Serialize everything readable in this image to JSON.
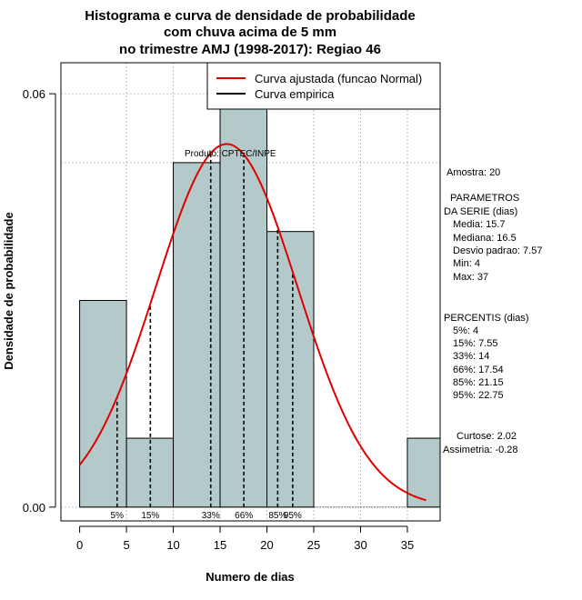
{
  "colors": {
    "bar_fill": "#b4caca",
    "curve": "#e00000",
    "grid": "#b0b0b0"
  },
  "chart_data": {
    "type": "bar",
    "title": [
      "Histograma e curva de densidade de probabilidade",
      "com chuva acima de 5 mm",
      "no trimestre AMJ (1998-2017): Regiao 46"
    ],
    "xlabel": "Numero de dias",
    "ylabel": "Densidade de probabilidade",
    "xlim": [
      -2,
      38.5
    ],
    "ylim": [
      -0.002,
      0.0645
    ],
    "x_ticks": [
      0,
      5,
      10,
      15,
      20,
      25,
      30,
      35
    ],
    "y_ticks": [
      0.0,
      0.06
    ],
    "y_tick_labels": [
      "0.00",
      "0.06"
    ],
    "x_gridlines": [
      5,
      10,
      15,
      20,
      25,
      30,
      35
    ],
    "y_gridlines": [
      0.0,
      0.05,
      0.06
    ],
    "bins": [
      {
        "x0": 0,
        "x1": 5,
        "density": 0.03
      },
      {
        "x0": 5,
        "x1": 10,
        "density": 0.01
      },
      {
        "x0": 10,
        "x1": 15,
        "density": 0.05
      },
      {
        "x0": 15,
        "x1": 20,
        "density": 0.06
      },
      {
        "x0": 20,
        "x1": 25,
        "density": 0.04
      },
      {
        "x0": 25,
        "x1": 30,
        "density": 0
      },
      {
        "x0": 30,
        "x1": 35,
        "density": 0
      },
      {
        "x0": 35,
        "x1": 40,
        "density": 0.01
      }
    ],
    "normal_curve": {
      "mean": 15.7,
      "sd": 7.57,
      "x_from": 0,
      "x_to": 37
    },
    "legend": {
      "position": "top-right",
      "entries": [
        "Curva ajustada (funcao Normal)",
        "Curva empirica"
      ]
    },
    "annotation": "Produto: CPTEC/INPE",
    "percentile_lines": [
      {
        "label": "5%",
        "x": 4
      },
      {
        "label": "15%",
        "x": 7.55
      },
      {
        "label": "33%",
        "x": 14
      },
      {
        "label": "66%",
        "x": 17.54
      },
      {
        "label": "85%",
        "x": 21.15
      },
      {
        "label": "95%",
        "x": 22.75
      }
    ],
    "stats": {
      "amostra": "Amostra: 20",
      "parametros_title": [
        "PARAMETROS",
        "DA SERIE (dias)"
      ],
      "parametros": [
        "Media: 15.7",
        "Mediana: 16.5",
        "Desvio padrao: 7.57",
        "Min: 4",
        "Max: 37"
      ],
      "percentis_title": "PERCENTIS (dias)",
      "percentis": [
        "5%: 4",
        "15%: 7.55",
        "33%: 14",
        "66%: 17.54",
        "85%: 21.15",
        "95%: 22.75"
      ],
      "curtose": "Curtose: 2.02",
      "assimetria": "Assimetria: -0.28"
    }
  }
}
